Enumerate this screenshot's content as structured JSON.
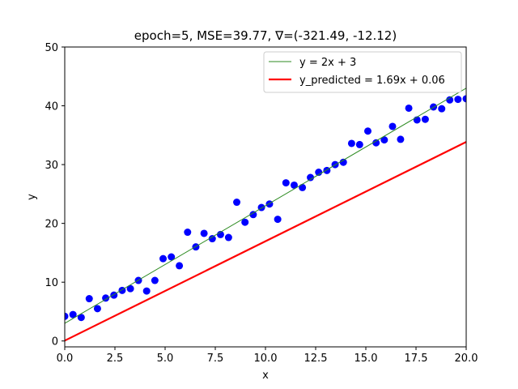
{
  "chart_data": {
    "type": "scatter",
    "title": "epoch=5, MSE=39.77, ∇=(-321.49, -12.12)",
    "xlabel": "x",
    "ylabel": "y",
    "xlim": [
      0,
      20
    ],
    "ylim": [
      -1,
      50
    ],
    "xticks": [
      0,
      2.5,
      5,
      7.5,
      10,
      12.5,
      15,
      17.5,
      20
    ],
    "xtick_labels": [
      "0.0",
      "2.5",
      "5.0",
      "7.5",
      "10.0",
      "12.5",
      "15.0",
      "17.5",
      "20.0"
    ],
    "yticks": [
      0,
      10,
      20,
      30,
      40,
      50
    ],
    "ytick_labels": [
      "0",
      "10",
      "20",
      "30",
      "40",
      "50"
    ],
    "grid": false,
    "legend_position": "top-right",
    "series": [
      {
        "name": "",
        "kind": "points",
        "color": "#0000ff",
        "x": [
          0,
          0.41,
          0.82,
          1.22,
          1.63,
          2.04,
          2.45,
          2.86,
          3.27,
          3.67,
          4.08,
          4.49,
          4.9,
          5.31,
          5.71,
          6.12,
          6.53,
          6.94,
          7.35,
          7.76,
          8.16,
          8.57,
          8.98,
          9.39,
          9.8,
          10.2,
          10.61,
          11.02,
          11.43,
          11.84,
          12.24,
          12.65,
          13.06,
          13.47,
          13.88,
          14.29,
          14.69,
          15.1,
          15.51,
          15.92,
          16.33,
          16.73,
          17.14,
          17.55,
          17.96,
          18.37,
          18.78,
          19.18,
          19.59,
          20.0
        ],
        "y": [
          4.2,
          4.5,
          4.0,
          7.2,
          5.5,
          7.3,
          7.8,
          8.6,
          8.9,
          10.3,
          8.5,
          10.3,
          14.0,
          14.3,
          12.8,
          18.5,
          16.0,
          18.3,
          17.4,
          18.1,
          17.6,
          23.6,
          20.2,
          21.5,
          22.7,
          23.3,
          20.7,
          26.9,
          26.5,
          26.1,
          27.8,
          28.7,
          29.0,
          30.0,
          30.4,
          33.6,
          33.4,
          35.7,
          33.7,
          34.2,
          36.5,
          34.3,
          39.6,
          37.6,
          37.7,
          39.8,
          39.5,
          41.0,
          41.1,
          41.2
        ]
      },
      {
        "name": "y = 2x + 3",
        "kind": "line",
        "color": "#2e8b22",
        "x": [
          0,
          20
        ],
        "y": [
          3,
          43
        ]
      },
      {
        "name": "y_predicted = 1.69x + 0.06",
        "kind": "line",
        "color": "#ff0000",
        "x": [
          0,
          20
        ],
        "y": [
          0.06,
          33.86
        ]
      }
    ]
  }
}
